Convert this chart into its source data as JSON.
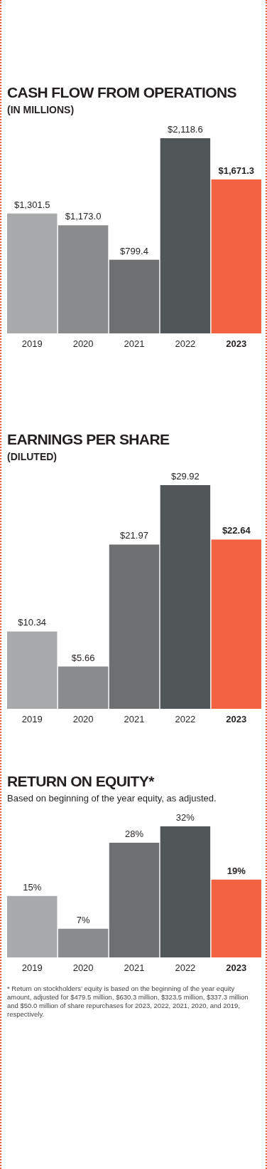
{
  "chart_data": [
    {
      "type": "bar",
      "title": "CASH FLOW FROM OPERATIONS",
      "subtitle": "(IN MILLIONS)",
      "categories": [
        "2019",
        "2020",
        "2021",
        "2022",
        "2023"
      ],
      "values": [
        1301.5,
        1173.0,
        799.4,
        2118.6,
        1671.3
      ],
      "value_labels": [
        "$1,301.5",
        "$1,173.0",
        "$799.4",
        "$2,118.6",
        "$1,671.3"
      ],
      "colors": [
        "#a7a9ab",
        "#898b8c",
        "#6d6f71",
        "#515759",
        "#f26241"
      ]
    },
    {
      "type": "bar",
      "title": "EARNINGS PER SHARE",
      "subtitle": "(DILUTED)",
      "categories": [
        "2019",
        "2020",
        "2021",
        "2022",
        "2023"
      ],
      "values": [
        10.34,
        5.66,
        21.97,
        29.92,
        22.64
      ],
      "value_labels": [
        "$10.34",
        "$5.66",
        "$21.97",
        "$29.92",
        "$22.64"
      ],
      "colors": [
        "#a7a9ab",
        "#898b8c",
        "#6d6f71",
        "#515759",
        "#f26241"
      ]
    },
    {
      "type": "bar",
      "title": "RETURN ON EQUITY*",
      "subtitle": "Based on beginning of the year equity, as adjusted.",
      "categories": [
        "2019",
        "2020",
        "2021",
        "2022",
        "2023"
      ],
      "values": [
        15,
        7,
        28,
        32,
        19
      ],
      "value_labels": [
        "15%",
        "7%",
        "28%",
        "32%",
        "19%"
      ],
      "colors": [
        "#a7a9ab",
        "#898b8c",
        "#6d6f71",
        "#515759",
        "#f26241"
      ],
      "annotations": [
        "* Return on stockholders’ equity is based on the beginning of the year equity amount, adjusted for $479.5 million, $630.3 million, $323.5 million, $337.3 million and $50.0 million of share repurchases for 2023, 2022, 2021, 2020, and 2019, respectively."
      ]
    }
  ]
}
